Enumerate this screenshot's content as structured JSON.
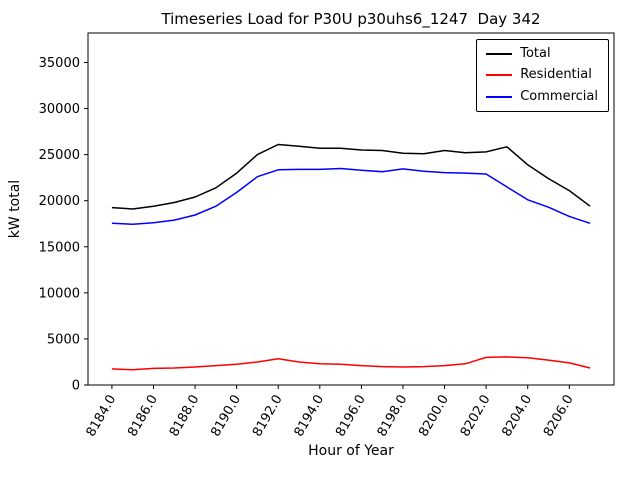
{
  "chart_data": {
    "type": "line",
    "title": "Timeseries Load for P30U p30uhs6_1247  Day 342",
    "xlabel": "Hour of Year",
    "ylabel": "kW total",
    "grid": false,
    "legend_position": "upper right",
    "xlim": [
      8182.85,
      8208.15
    ],
    "ylim": [
      0,
      38200
    ],
    "x": [
      8184,
      8185,
      8186,
      8187,
      8188,
      8189,
      8190,
      8191,
      8192,
      8193,
      8194,
      8195,
      8196,
      8197,
      8198,
      8199,
      8200,
      8201,
      8202,
      8203,
      8204,
      8205,
      8206,
      8207
    ],
    "series": [
      {
        "name": "Total",
        "color": "#000000",
        "values": [
          19250,
          19100,
          19400,
          19800,
          20400,
          21400,
          23000,
          25000,
          26100,
          25900,
          25700,
          25700,
          25500,
          25450,
          25150,
          25100,
          25450,
          25200,
          25300,
          25850,
          23900,
          22400,
          21100,
          19400
        ]
      },
      {
        "name": "Residential",
        "color": "#ff0000",
        "values": [
          1750,
          1650,
          1800,
          1850,
          1950,
          2100,
          2250,
          2500,
          2850,
          2500,
          2300,
          2250,
          2100,
          2000,
          1950,
          2000,
          2100,
          2300,
          3000,
          3050,
          2950,
          2700,
          2400,
          1850
        ]
      },
      {
        "name": "Commercial",
        "color": "#0000ff",
        "values": [
          17550,
          17450,
          17600,
          17900,
          18450,
          19400,
          20900,
          22600,
          23350,
          23400,
          23400,
          23500,
          23300,
          23150,
          23450,
          23200,
          23050,
          23000,
          22900,
          21500,
          20100,
          19300,
          18300,
          17550
        ]
      }
    ],
    "xticks": {
      "values": [
        8184,
        8186,
        8188,
        8190,
        8192,
        8194,
        8196,
        8198,
        8200,
        8202,
        8204,
        8206
      ],
      "labels": [
        "8184.0",
        "8186.0",
        "8188.0",
        "8190.0",
        "8192.0",
        "8194.0",
        "8196.0",
        "8198.0",
        "8200.0",
        "8202.0",
        "8204.0",
        "8206.0"
      ]
    },
    "yticks": {
      "values": [
        0,
        5000,
        10000,
        15000,
        20000,
        25000,
        30000,
        35000
      ],
      "labels": [
        "0",
        "5000",
        "10000",
        "15000",
        "20000",
        "25000",
        "30000",
        "35000"
      ]
    }
  }
}
